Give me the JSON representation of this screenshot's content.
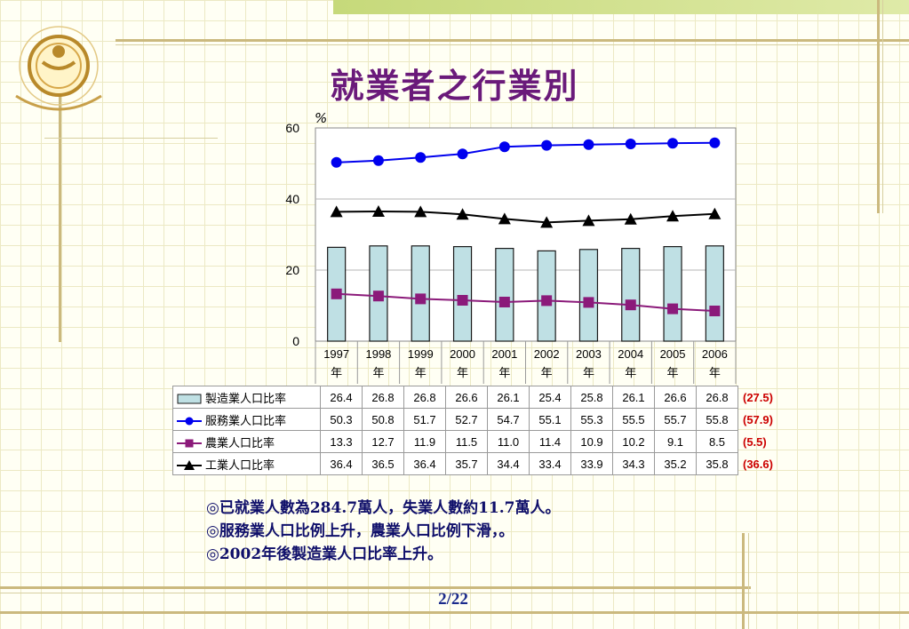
{
  "title": "就業者之行業別",
  "unit": "%",
  "page_number": "2/22",
  "notes": [
    "◎已就業人數為284.7萬人，失業人數約11.7萬人。",
    "◎服務業人口比例上升，農業人口比例下滑，。",
    "◎2002年後製造業人口比率上升。"
  ],
  "colors": {
    "title": "#6a1a7a",
    "bar_fill": "#bfe0e4",
    "services": "#0000ee",
    "agriculture": "#8b1a7a",
    "industry": "#000000",
    "extra_values": "#cc0000",
    "notes": "#0f0f6a",
    "page_number": "#1a2a8c"
  },
  "chart_data": {
    "type": "bar+line",
    "ylim": [
      0,
      60
    ],
    "yticks": [
      0,
      20,
      40,
      60
    ],
    "categories": [
      "1997年",
      "1998年",
      "1999年",
      "2000年",
      "2001年",
      "2002年",
      "2003年",
      "2004年",
      "2005年",
      "2006年"
    ],
    "series": [
      {
        "name": "製造業人口比率",
        "type": "bar",
        "marker": "bar",
        "values": [
          26.4,
          26.8,
          26.8,
          26.6,
          26.1,
          25.4,
          25.8,
          26.1,
          26.6,
          26.8
        ],
        "extra": "(27.5)"
      },
      {
        "name": "服務業人口比率",
        "type": "line",
        "marker": "circle",
        "values": [
          50.3,
          50.8,
          51.7,
          52.7,
          54.7,
          55.1,
          55.3,
          55.5,
          55.7,
          55.8
        ],
        "extra": "(57.9)"
      },
      {
        "name": "農業人口比率",
        "type": "line",
        "marker": "square",
        "values": [
          13.3,
          12.7,
          11.9,
          11.5,
          11.0,
          11.4,
          10.9,
          10.2,
          9.1,
          8.5
        ],
        "extra": "(5.5)"
      },
      {
        "name": "工業人口比率",
        "type": "line",
        "marker": "triangle",
        "values": [
          36.4,
          36.5,
          36.4,
          35.7,
          34.4,
          33.4,
          33.9,
          34.3,
          35.2,
          35.8
        ],
        "extra": "(36.6)"
      }
    ]
  }
}
